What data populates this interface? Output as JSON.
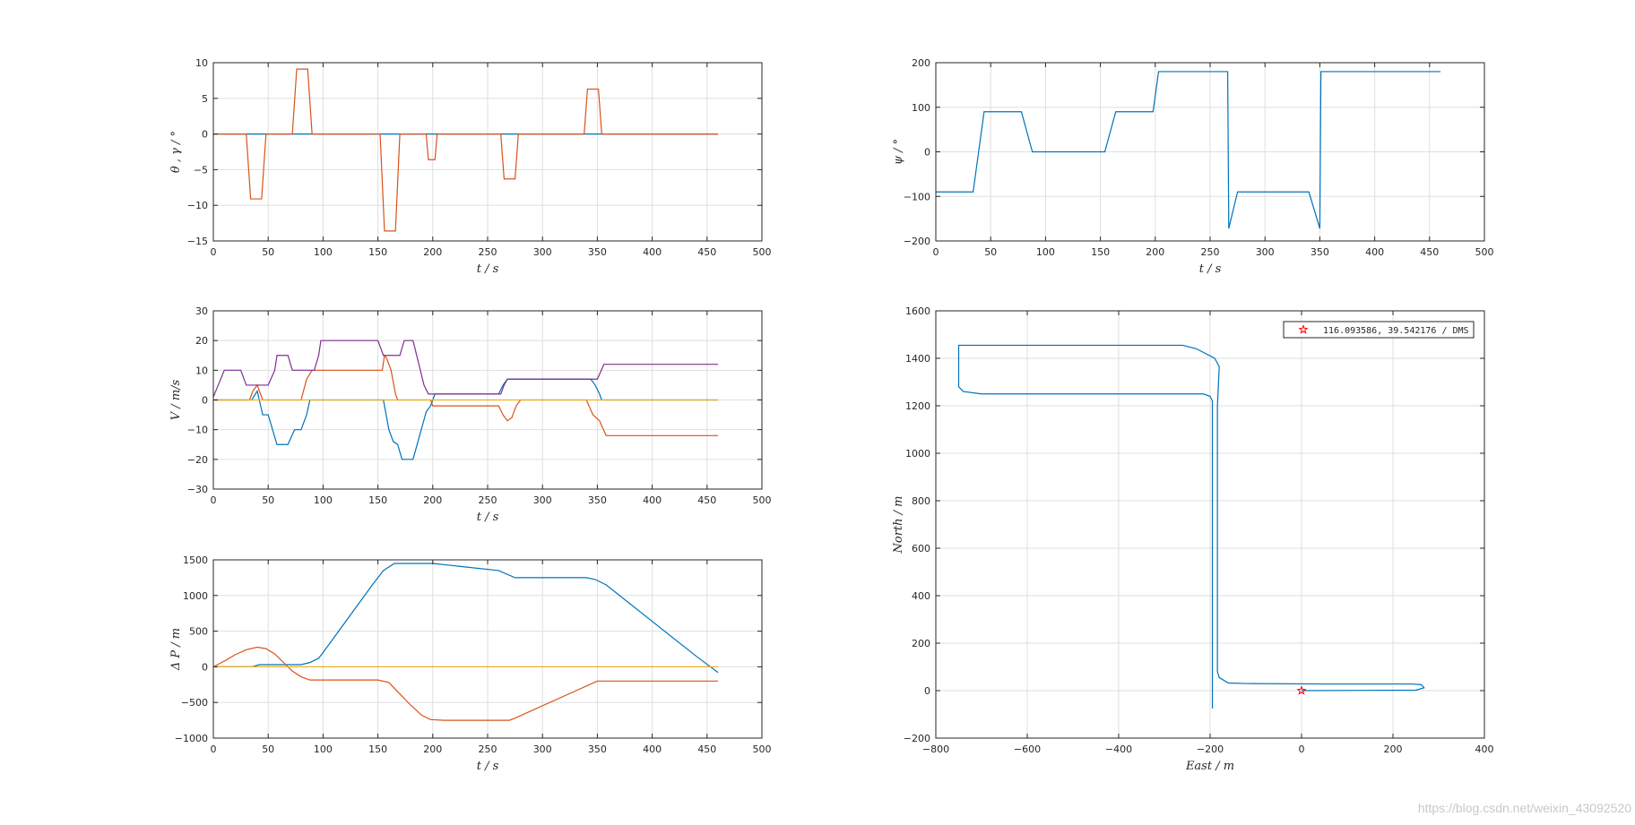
{
  "chart_data": [
    {
      "id": "p1",
      "type": "line",
      "xlabel": "t  / s",
      "ylabel": "θ , γ / °",
      "xlim": [
        0,
        500
      ],
      "ylim": [
        -15,
        10
      ],
      "xticks": [
        0,
        50,
        100,
        150,
        200,
        250,
        300,
        350,
        400,
        450,
        500
      ],
      "yticks": [
        -15,
        -10,
        -5,
        0,
        5,
        10
      ],
      "grid": true,
      "series": [
        {
          "color": "#0072bd",
          "points": [
            [
              0,
              0
            ],
            [
              460,
              0
            ]
          ]
        },
        {
          "color": "#d95319",
          "points": [
            [
              0,
              0
            ],
            [
              30,
              0
            ],
            [
              34,
              -9.1
            ],
            [
              44,
              -9.1
            ],
            [
              48,
              0
            ],
            [
              72,
              0
            ],
            [
              76,
              9.1
            ],
            [
              86,
              9.1
            ],
            [
              90,
              0
            ],
            [
              152,
              0
            ],
            [
              156,
              -13.6
            ],
            [
              166,
              -13.6
            ],
            [
              170,
              0
            ],
            [
              194,
              0
            ],
            [
              196,
              -3.6
            ],
            [
              202,
              -3.6
            ],
            [
              204,
              0
            ],
            [
              262,
              0
            ],
            [
              265,
              -6.3
            ],
            [
              275,
              -6.3
            ],
            [
              278,
              0
            ],
            [
              338,
              0
            ],
            [
              341,
              6.3
            ],
            [
              351,
              6.3
            ],
            [
              354,
              0
            ],
            [
              460,
              0
            ]
          ]
        }
      ]
    },
    {
      "id": "p2",
      "type": "line",
      "xlabel": "t  / s",
      "ylabel": "ψ / °",
      "xlim": [
        0,
        500
      ],
      "ylim": [
        -200,
        200
      ],
      "xticks": [
        0,
        50,
        100,
        150,
        200,
        250,
        300,
        350,
        400,
        450,
        500
      ],
      "yticks": [
        -200,
        -100,
        0,
        100,
        200
      ],
      "grid": true,
      "series": [
        {
          "color": "#0072bd",
          "points": [
            [
              0,
              -90
            ],
            [
              34,
              -90
            ],
            [
              44,
              90
            ],
            [
              78,
              90
            ],
            [
              88,
              0
            ],
            [
              154,
              0
            ],
            [
              164,
              90
            ],
            [
              198,
              90
            ],
            [
              203,
              180
            ],
            [
              266,
              180
            ],
            [
              267,
              -172
            ],
            [
              275,
              -90
            ],
            [
              340,
              -90
            ],
            [
              350,
              -172
            ],
            [
              351,
              180
            ],
            [
              460,
              180
            ]
          ]
        }
      ]
    },
    {
      "id": "p3",
      "type": "line",
      "xlabel": "t  / s",
      "ylabel": "V / m/s",
      "xlim": [
        0,
        500
      ],
      "ylim": [
        -30,
        30
      ],
      "xticks": [
        0,
        50,
        100,
        150,
        200,
        250,
        300,
        350,
        400,
        450,
        500
      ],
      "yticks": [
        -30,
        -20,
        -10,
        0,
        10,
        20,
        30
      ],
      "grid": true,
      "series": [
        {
          "color": "#0072bd",
          "points": [
            [
              0,
              0
            ],
            [
              35,
              0
            ],
            [
              40,
              3
            ],
            [
              45,
              -5
            ],
            [
              50,
              -5
            ],
            [
              58,
              -15
            ],
            [
              68,
              -15
            ],
            [
              74,
              -10
            ],
            [
              80,
              -10
            ],
            [
              85,
              -5
            ],
            [
              88,
              0
            ],
            [
              155,
              0
            ],
            [
              160,
              -10
            ],
            [
              164,
              -14
            ],
            [
              168,
              -15
            ],
            [
              172,
              -20
            ],
            [
              182,
              -20
            ],
            [
              188,
              -12
            ],
            [
              194,
              -4
            ],
            [
              198,
              -2
            ],
            [
              202,
              2
            ],
            [
              260,
              2
            ],
            [
              264,
              5
            ],
            [
              268,
              7
            ],
            [
              340,
              7
            ],
            [
              344,
              7
            ],
            [
              348,
              5
            ],
            [
              352,
              2
            ],
            [
              354,
              0
            ],
            [
              460,
              0
            ]
          ]
        },
        {
          "color": "#d95319",
          "points": [
            [
              0,
              0
            ],
            [
              33,
              0
            ],
            [
              36,
              3
            ],
            [
              40,
              5
            ],
            [
              45,
              0
            ],
            [
              80,
              0
            ],
            [
              85,
              7
            ],
            [
              90,
              10
            ],
            [
              154,
              10
            ],
            [
              156,
              15
            ],
            [
              158,
              14
            ],
            [
              162,
              10
            ],
            [
              166,
              2
            ],
            [
              168,
              0
            ],
            [
              198,
              0
            ],
            [
              200,
              -2
            ],
            [
              260,
              -2
            ],
            [
              264,
              -5
            ],
            [
              268,
              -7
            ],
            [
              272,
              -6
            ],
            [
              276,
              -2
            ],
            [
              280,
              0
            ],
            [
              340,
              0
            ],
            [
              346,
              -5
            ],
            [
              352,
              -7
            ],
            [
              358,
              -12
            ],
            [
              460,
              -12
            ]
          ]
        },
        {
          "color": "#edb120",
          "points": [
            [
              0,
              0
            ],
            [
              460,
              0
            ]
          ]
        },
        {
          "color": "#7e2f8e",
          "points": [
            [
              0,
              1
            ],
            [
              10,
              10
            ],
            [
              25,
              10
            ],
            [
              30,
              5
            ],
            [
              50,
              5
            ],
            [
              56,
              10
            ],
            [
              58,
              15
            ],
            [
              68,
              15
            ],
            [
              72,
              10
            ],
            [
              92,
              10
            ],
            [
              96,
              15
            ],
            [
              98,
              20
            ],
            [
              150,
              20
            ],
            [
              155,
              15
            ],
            [
              170,
              15
            ],
            [
              174,
              20
            ],
            [
              182,
              20
            ],
            [
              192,
              5
            ],
            [
              196,
              2
            ],
            [
              262,
              2
            ],
            [
              265,
              5
            ],
            [
              268,
              7
            ],
            [
              350,
              7
            ],
            [
              356,
              12
            ],
            [
              460,
              12
            ]
          ]
        }
      ]
    },
    {
      "id": "p4",
      "type": "line",
      "xlabel": "East / m",
      "ylabel": "North / m",
      "xlim": [
        -800,
        400
      ],
      "ylim": [
        -200,
        1600
      ],
      "xticks": [
        -800,
        -600,
        -400,
        -200,
        0,
        200,
        400
      ],
      "yticks": [
        -200,
        0,
        200,
        400,
        600,
        800,
        1000,
        1200,
        1400,
        1600
      ],
      "grid": true,
      "legend": {
        "label": "116.093586, 39.542176 / DMS",
        "location": "top-right"
      },
      "marker": {
        "x": 0,
        "y": 0,
        "symbol": "star",
        "color": "#ff0000"
      },
      "series": [
        {
          "color": "#0072bd",
          "points": [
            [
              0,
              0
            ],
            [
              250,
              2
            ],
            [
              268,
              12
            ],
            [
              262,
              25
            ],
            [
              240,
              28
            ],
            [
              40,
              28
            ],
            [
              -120,
              30
            ],
            [
              -160,
              32
            ],
            [
              -180,
              55
            ],
            [
              -184,
              80
            ],
            [
              -184,
              1200
            ],
            [
              -180,
              1365
            ],
            [
              -190,
              1400
            ],
            [
              -230,
              1440
            ],
            [
              -260,
              1455
            ],
            [
              -750,
              1455
            ],
            [
              -750,
              1280
            ],
            [
              -740,
              1260
            ],
            [
              -700,
              1250
            ],
            [
              -215,
              1250
            ],
            [
              -200,
              1240
            ],
            [
              -195,
              1220
            ],
            [
              -195,
              1000
            ],
            [
              -195,
              -75
            ]
          ]
        }
      ]
    },
    {
      "id": "p5",
      "type": "line",
      "xlabel": "t  / s",
      "ylabel": "Δ P / m",
      "xlim": [
        0,
        500
      ],
      "ylim": [
        -1000,
        1500
      ],
      "xticks": [
        0,
        50,
        100,
        150,
        200,
        250,
        300,
        350,
        400,
        450,
        500
      ],
      "yticks": [
        -1000,
        -500,
        0,
        500,
        1000,
        1500
      ],
      "grid": true,
      "series": [
        {
          "color": "#0072bd",
          "points": [
            [
              0,
              0
            ],
            [
              35,
              0
            ],
            [
              42,
              30
            ],
            [
              80,
              30
            ],
            [
              88,
              60
            ],
            [
              96,
              120
            ],
            [
              100,
              200
            ],
            [
              145,
              1150
            ],
            [
              155,
              1350
            ],
            [
              165,
              1450
            ],
            [
              200,
              1450
            ],
            [
              260,
              1350
            ],
            [
              275,
              1250
            ],
            [
              340,
              1250
            ],
            [
              348,
              1225
            ],
            [
              358,
              1150
            ],
            [
              440,
              150
            ],
            [
              460,
              -80
            ]
          ]
        },
        {
          "color": "#d95319",
          "points": [
            [
              0,
              0
            ],
            [
              10,
              80
            ],
            [
              20,
              170
            ],
            [
              30,
              240
            ],
            [
              40,
              275
            ],
            [
              48,
              255
            ],
            [
              56,
              180
            ],
            [
              64,
              60
            ],
            [
              72,
              -60
            ],
            [
              80,
              -140
            ],
            [
              88,
              -185
            ],
            [
              150,
              -185
            ],
            [
              160,
              -220
            ],
            [
              170,
              -380
            ],
            [
              180,
              -540
            ],
            [
              190,
              -680
            ],
            [
              198,
              -740
            ],
            [
              210,
              -750
            ],
            [
              270,
              -750
            ],
            [
              275,
              -720
            ],
            [
              350,
              -200
            ],
            [
              460,
              -200
            ]
          ]
        },
        {
          "color": "#edb120",
          "points": [
            [
              0,
              0
            ],
            [
              460,
              0
            ]
          ]
        }
      ]
    }
  ],
  "watermark": "https://blog.csdn.net/weixin_43092520"
}
